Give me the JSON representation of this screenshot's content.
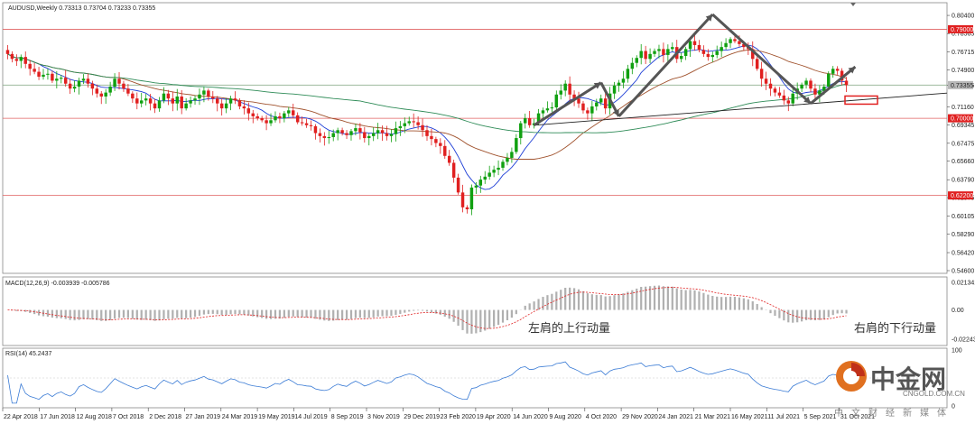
{
  "chart_data": [
    {
      "type": "candlestick",
      "symbol_header": "AUDUSD,Weekly  0.73313 0.73704 0.73233 0.73355",
      "current_price": 0.73355,
      "current_price_label": "0.73355",
      "price_axis": {
        "ylim": [
          0.546,
          0.815
        ],
        "ticks": [
          "0.80400",
          "0.78565",
          "0.76715",
          "0.74900",
          "0.73355",
          "0.71160",
          "0.69345",
          "0.67475",
          "0.65660",
          "0.63790",
          "0.61975",
          "0.60105",
          "0.58290",
          "0.56420",
          "0.54600"
        ],
        "tick_values": [
          0.804,
          0.78565,
          0.76715,
          0.749,
          0.73355,
          0.7116,
          0.69345,
          0.67475,
          0.6566,
          0.6379,
          0.61975,
          0.60105,
          0.5829,
          0.5642,
          0.546
        ]
      },
      "horizontal_levels": [
        {
          "value": 0.79,
          "label": "0.79000",
          "color": "#e06060"
        },
        {
          "value": 0.7,
          "label": "0.70000",
          "color": "#e06060"
        },
        {
          "value": 0.622,
          "label": "0.62200",
          "color": "#e06060"
        },
        {
          "value": 0.73355,
          "label": "",
          "color": "#90b090"
        }
      ],
      "x_ticks": [
        "22 Apr 2018",
        "17 Jun 2018",
        "12 Aug 2018",
        "7 Oct 2018",
        "2 Dec 2018",
        "27 Jan 2019",
        "24 Mar 2019",
        "19 May 2019",
        "14 Jul 2019",
        "8 Sep 2019",
        "3 Nov 2019",
        "29 Dec 2019",
        "23 Feb 2020",
        "19 Apr 2020",
        "14 Jun 2020",
        "9 Aug 2020",
        "4 Oct 2020",
        "29 Nov 2020",
        "24 Jan 2021",
        "21 Mar 2021",
        "16 May 2021",
        "11 Jul 2021",
        "5 Sep 2021",
        "31 Oct 2021"
      ],
      "closes": [
        0.765,
        0.76,
        0.758,
        0.762,
        0.755,
        0.75,
        0.747,
        0.742,
        0.744,
        0.745,
        0.738,
        0.74,
        0.741,
        0.735,
        0.73,
        0.732,
        0.738,
        0.74,
        0.735,
        0.73,
        0.725,
        0.722,
        0.726,
        0.732,
        0.74,
        0.735,
        0.73,
        0.725,
        0.72,
        0.715,
        0.718,
        0.72,
        0.715,
        0.71,
        0.718,
        0.725,
        0.72,
        0.715,
        0.722,
        0.71,
        0.715,
        0.718,
        0.72,
        0.724,
        0.728,
        0.722,
        0.72,
        0.715,
        0.71,
        0.715,
        0.72,
        0.718,
        0.712,
        0.71,
        0.705,
        0.702,
        0.7,
        0.698,
        0.695,
        0.698,
        0.702,
        0.7,
        0.705,
        0.708,
        0.703,
        0.696,
        0.695,
        0.693,
        0.692,
        0.685,
        0.682,
        0.68,
        0.681,
        0.685,
        0.688,
        0.685,
        0.683,
        0.687,
        0.69,
        0.686,
        0.68,
        0.682,
        0.685,
        0.688,
        0.685,
        0.682,
        0.684,
        0.69,
        0.692,
        0.695,
        0.697,
        0.696,
        0.693,
        0.688,
        0.682,
        0.679,
        0.675,
        0.672,
        0.662,
        0.655,
        0.64,
        0.625,
        0.61,
        0.608,
        0.63,
        0.632,
        0.638,
        0.641,
        0.645,
        0.648,
        0.65,
        0.656,
        0.66,
        0.666,
        0.68,
        0.695,
        0.7,
        0.693,
        0.695,
        0.705,
        0.708,
        0.71,
        0.711,
        0.724,
        0.728,
        0.735,
        0.724,
        0.72,
        0.715,
        0.708,
        0.705,
        0.712,
        0.716,
        0.72,
        0.71,
        0.725,
        0.733,
        0.736,
        0.74,
        0.75,
        0.756,
        0.761,
        0.768,
        0.76,
        0.765,
        0.768,
        0.77,
        0.764,
        0.77,
        0.772,
        0.76,
        0.763,
        0.77,
        0.778,
        0.774,
        0.769,
        0.765,
        0.762,
        0.764,
        0.768,
        0.772,
        0.776,
        0.78,
        0.778,
        0.775,
        0.772,
        0.77,
        0.76,
        0.75,
        0.74,
        0.735,
        0.73,
        0.726,
        0.723,
        0.718,
        0.715,
        0.725,
        0.73,
        0.734,
        0.738,
        0.73,
        0.724,
        0.728,
        0.732,
        0.745,
        0.75,
        0.748,
        0.738,
        0.7335
      ],
      "moving_averages": [
        {
          "name": "",
          "color": "#1f3fd6"
        },
        {
          "name": "",
          "color": "#a0522d"
        },
        {
          "name": "",
          "color": "#2e8b57"
        }
      ],
      "annotations": {
        "head_shoulders_arrows": true,
        "trendline": true
      }
    },
    {
      "type": "bar",
      "title": "MACD(12,26,9) -0.003939 -0.005786",
      "ylim": [
        -0.026,
        0.024
      ],
      "ticks": [
        "0.021341",
        "0.00",
        "-0.022437"
      ],
      "tick_values": [
        0.021341,
        0,
        -0.022437
      ]
    },
    {
      "type": "line",
      "title": "RSI(14) 45.2437",
      "ylim": [
        0,
        100
      ],
      "ticks": [
        "100",
        "0"
      ],
      "tick_values": [
        100,
        0
      ]
    }
  ],
  "annotations_text": {
    "left_shoulder": "左肩的上行动量",
    "right_shoulder": "右肩的下行动量"
  },
  "watermark": {
    "brand": "中金网",
    "domain": "CNGOLD.COM.CN",
    "tagline": "中文财经新媒体"
  },
  "colors": {
    "up_candle": "#10a010",
    "down_candle": "#e02020",
    "level_line": "#e06060",
    "macd_bars": "#b0b0b0",
    "macd_signal": "#e02020",
    "rsi_line": "#3a7bd5"
  }
}
